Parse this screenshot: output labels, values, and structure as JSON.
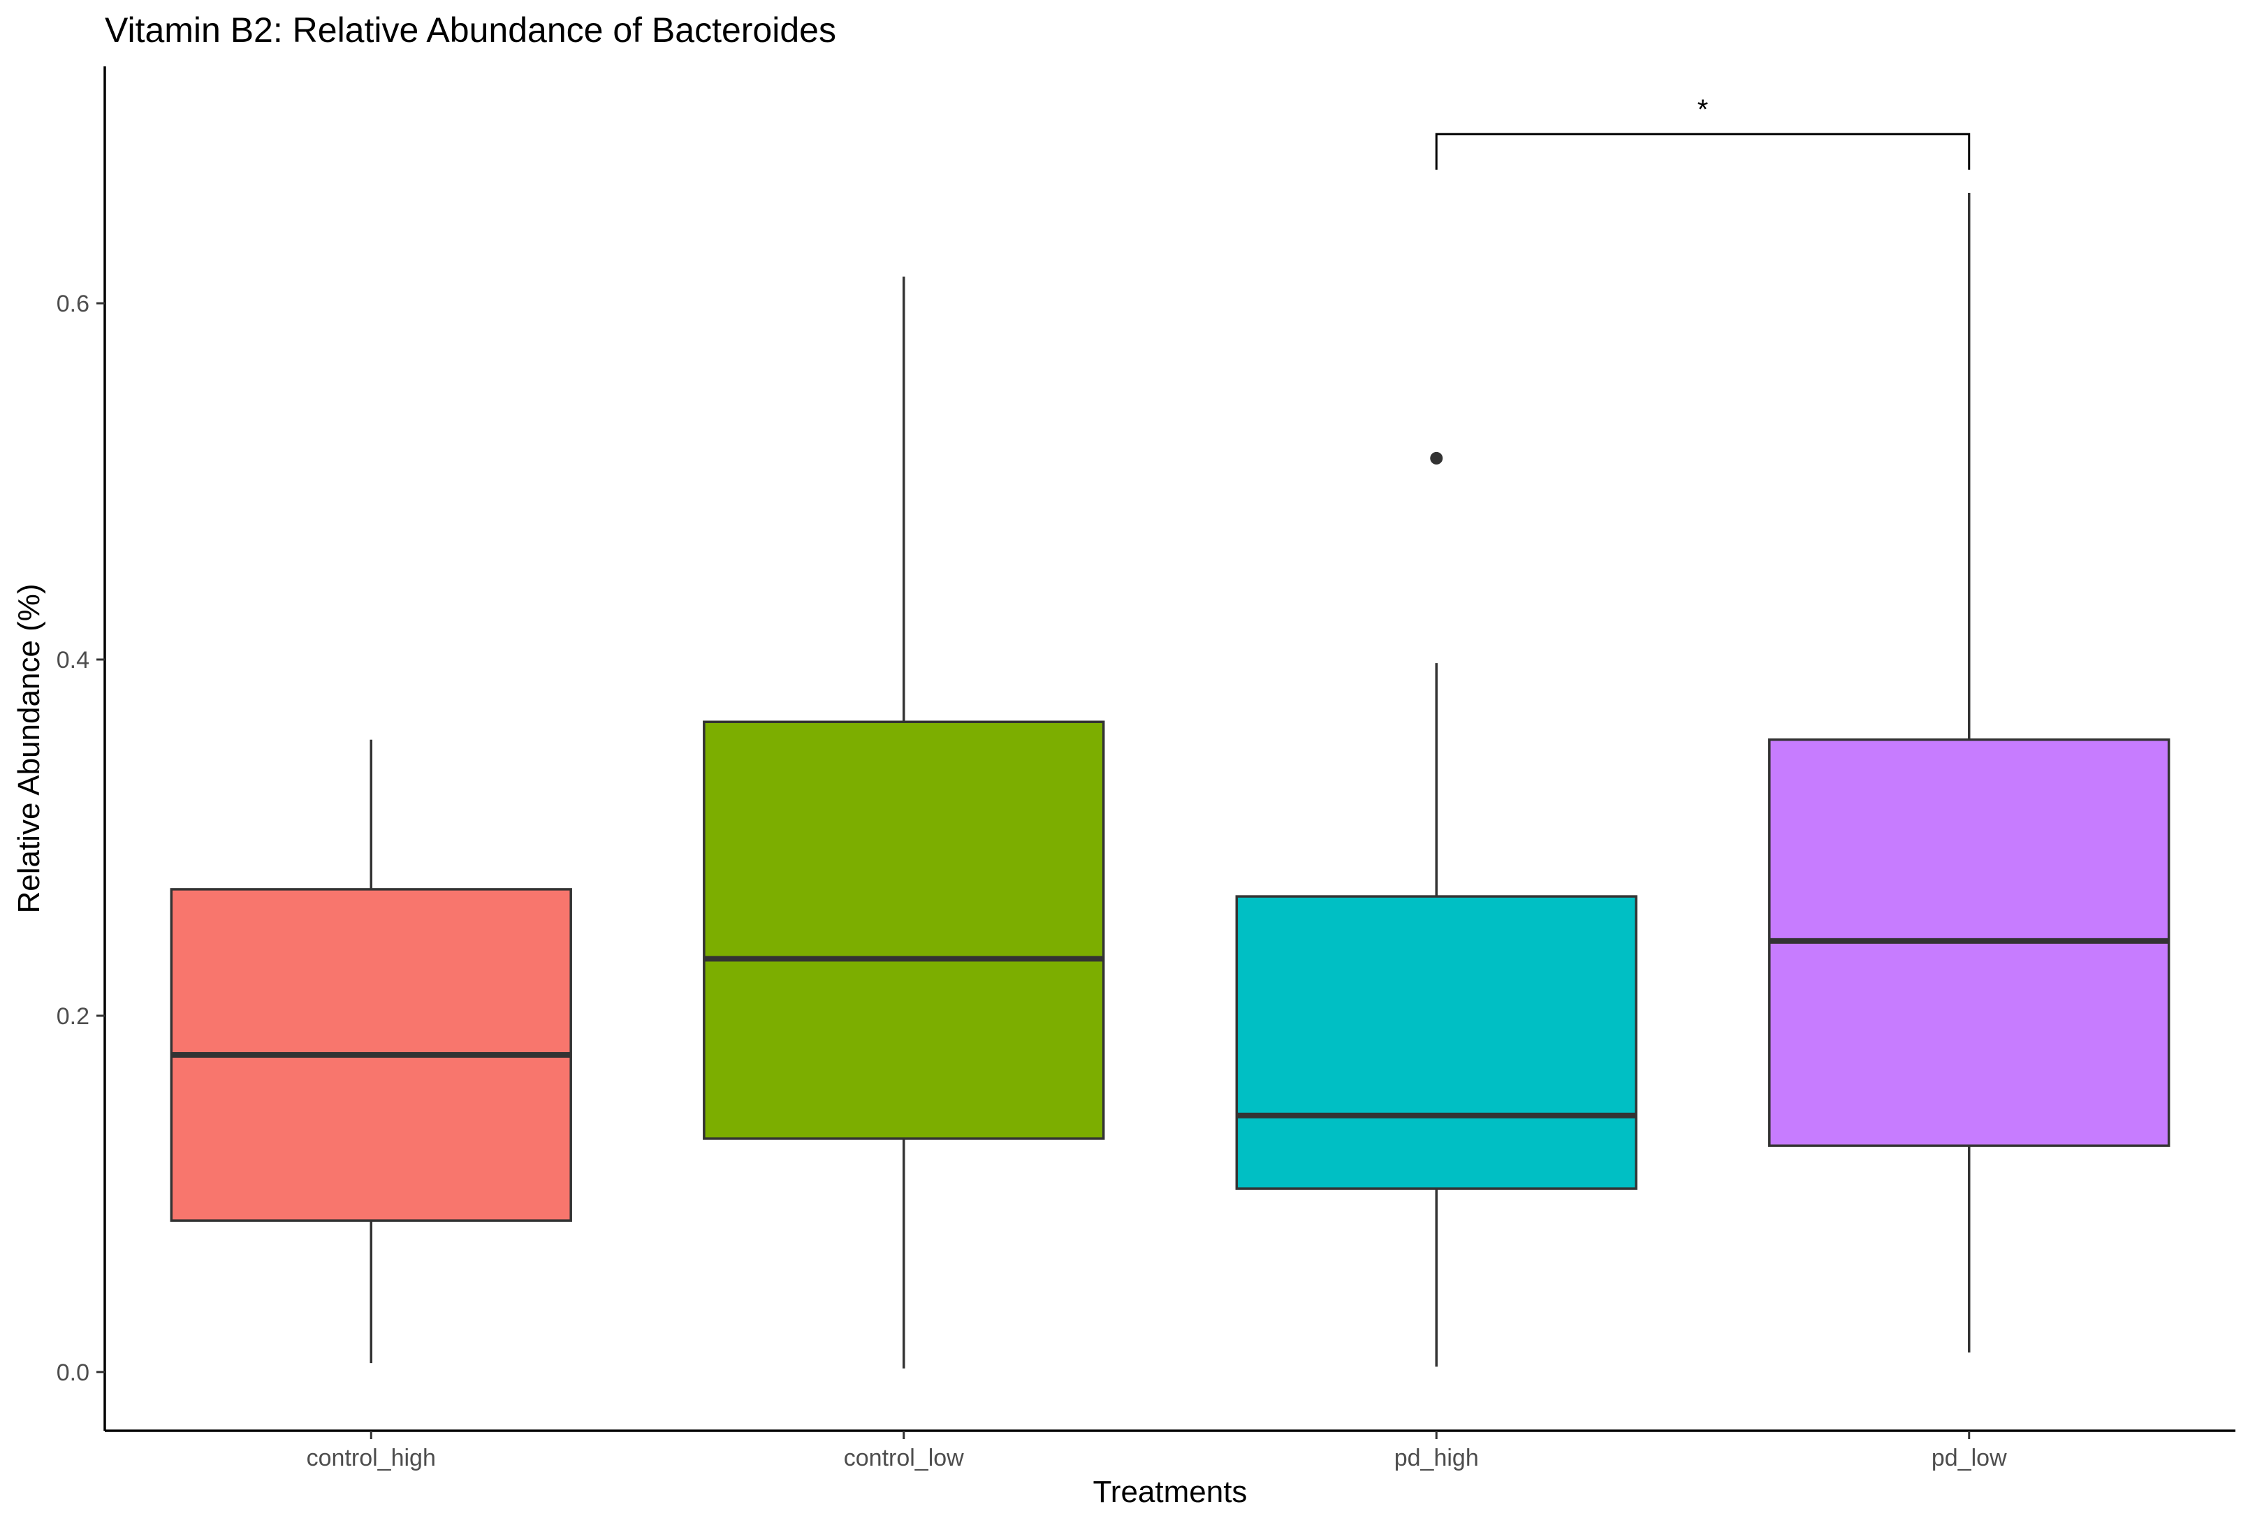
{
  "chart_data": {
    "type": "box",
    "title": "Vitamin B2: Relative Abundance of Bacteroides",
    "xlabel": "Treatments",
    "ylabel": "Relative Abundance (%)",
    "ylim": [
      -0.033,
      0.733
    ],
    "yticks": [
      0.0,
      0.2,
      0.4,
      0.6
    ],
    "ytick_labels": [
      "0.0",
      "0.2",
      "0.4",
      "0.6"
    ],
    "grid": false,
    "legend": "none",
    "categories": [
      "control_high",
      "control_low",
      "pd_high",
      "pd_low"
    ],
    "boxes": [
      {
        "category": "control_high",
        "color": "#F8766D",
        "whisker_low": 0.005,
        "q1": 0.085,
        "median": 0.178,
        "q3": 0.271,
        "whisker_high": 0.355,
        "outliers": []
      },
      {
        "category": "control_low",
        "color": "#7CAE00",
        "whisker_low": 0.002,
        "q1": 0.131,
        "median": 0.232,
        "q3": 0.365,
        "whisker_high": 0.615,
        "outliers": []
      },
      {
        "category": "pd_high",
        "color": "#00BFC4",
        "whisker_low": 0.003,
        "q1": 0.103,
        "median": 0.144,
        "q3": 0.267,
        "whisker_high": 0.398,
        "outliers": [
          0.513
        ]
      },
      {
        "category": "pd_low",
        "color": "#C77CFF",
        "whisker_low": 0.011,
        "q1": 0.127,
        "median": 0.242,
        "q3": 0.355,
        "whisker_high": 0.662,
        "outliers": []
      }
    ],
    "annotations": [
      {
        "type": "significance-bracket",
        "from": "pd_high",
        "to": "pd_low",
        "y": 0.695,
        "tip_y": 0.675,
        "label": "*"
      }
    ]
  }
}
